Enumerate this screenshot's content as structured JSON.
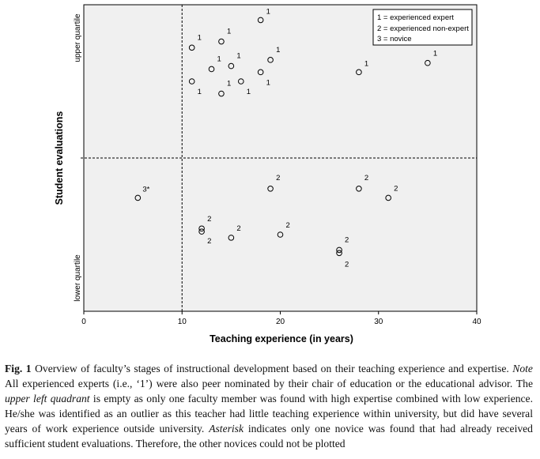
{
  "chart_data": {
    "type": "scatter",
    "xlabel": "Teaching experience (in years)",
    "ylabel": "Student evaluations",
    "xlim": [
      0,
      40
    ],
    "xticks": [
      0,
      10,
      20,
      30,
      40
    ],
    "y_scale": "categorical (lower quartile / upper quartile)",
    "y_categories": [
      "lower quartile",
      "upper quartile"
    ],
    "reference_lines": {
      "x": 10,
      "y": "boundary between lower and upper quartile"
    },
    "grid": false,
    "legend_position": "top-right",
    "legend": [
      "1 = experienced expert",
      "2 = experienced non-expert",
      "3 = novice"
    ],
    "points": [
      {
        "x": 18.0,
        "y": 0.95,
        "label": "1"
      },
      {
        "x": 11.0,
        "y": 0.86,
        "label": "1"
      },
      {
        "x": 14.0,
        "y": 0.88,
        "label": "1"
      },
      {
        "x": 13.0,
        "y": 0.79,
        "label": "1"
      },
      {
        "x": 15.0,
        "y": 0.8,
        "label": "1"
      },
      {
        "x": 19.0,
        "y": 0.82,
        "label": "1"
      },
      {
        "x": 18.0,
        "y": 0.78,
        "label": "1"
      },
      {
        "x": 11.0,
        "y": 0.75,
        "label": "1"
      },
      {
        "x": 16.0,
        "y": 0.75,
        "label": "1"
      },
      {
        "x": 14.0,
        "y": 0.71,
        "label": "1"
      },
      {
        "x": 28.0,
        "y": 0.78,
        "label": "1"
      },
      {
        "x": 35.0,
        "y": 0.81,
        "label": "1"
      },
      {
        "x": 5.5,
        "y": 0.37,
        "label": "3*"
      },
      {
        "x": 19.0,
        "y": 0.4,
        "label": "2"
      },
      {
        "x": 28.0,
        "y": 0.4,
        "label": "2"
      },
      {
        "x": 31.0,
        "y": 0.37,
        "label": "2"
      },
      {
        "x": 12.0,
        "y": 0.27,
        "label": "2"
      },
      {
        "x": 12.0,
        "y": 0.26,
        "label": "2"
      },
      {
        "x": 15.0,
        "y": 0.24,
        "label": "2"
      },
      {
        "x": 20.0,
        "y": 0.25,
        "label": "2"
      },
      {
        "x": 26.0,
        "y": 0.2,
        "label": "2"
      },
      {
        "x": 26.0,
        "y": 0.19,
        "label": "2"
      }
    ]
  },
  "caption": {
    "fig_label": "Fig. 1",
    "text_1": "  Overview of faculty’s stages of instructional development based on their teaching experience and expertise. ",
    "note_word": "Note",
    "text_2": " All experienced experts (i.e., ‘1’) were also peer nominated by their chair of education or the educational advisor. The ",
    "ulq_phrase": "upper left quadrant",
    "text_3": " is empty as only one faculty member was found with high expertise combined with low experience. He/she was identified as an outlier as this teacher had little teaching experience within university, but did have several years of work experience outside university. ",
    "asterisk_word": "Asterisk",
    "text_4": " indicates only one novice was found that had already received sufficient student evaluations. Therefore, the other novices could not be plotted"
  }
}
